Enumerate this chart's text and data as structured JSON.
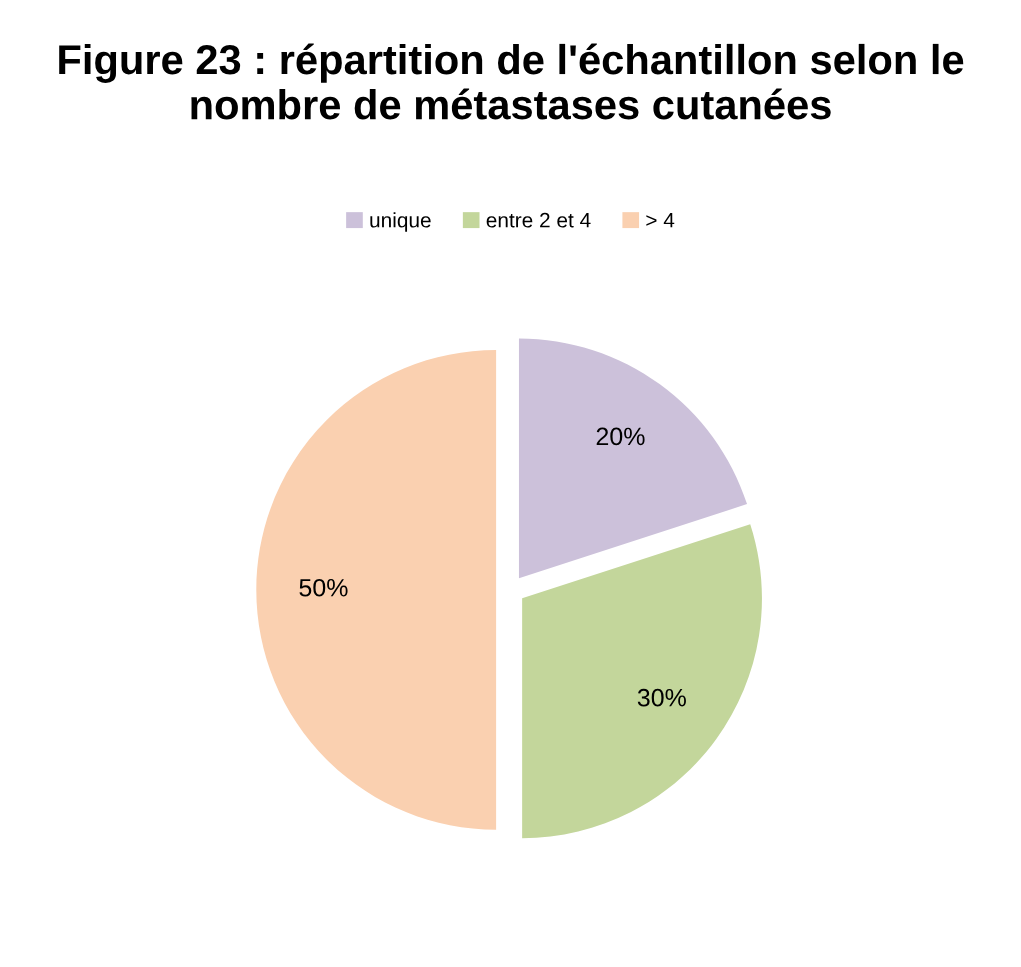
{
  "chart_data": {
    "type": "pie",
    "title": "Figure 23 : répartition de l'échantillon selon le nombre de métastases cutanées",
    "categories": [
      "unique",
      "entre 2 et 4",
      "> 4"
    ],
    "values": [
      20,
      30,
      50
    ],
    "colors": [
      "#ccc1da",
      "#c3d69b",
      "#fad0b0"
    ],
    "value_labels": [
      "20%",
      "30%",
      "50%"
    ],
    "legend": "top"
  }
}
